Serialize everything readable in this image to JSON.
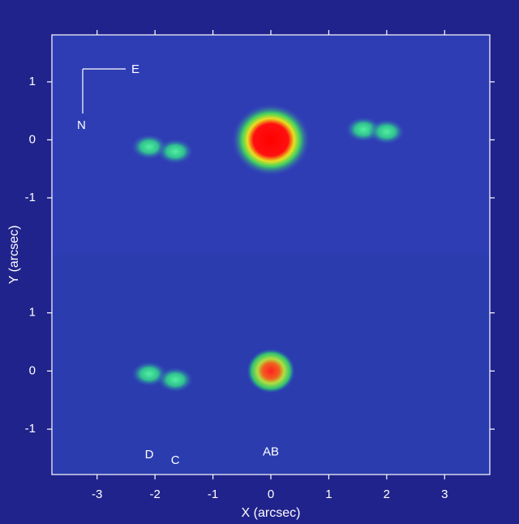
{
  "figure": {
    "x_label": "X (arcsec)",
    "y_label": "Y (arcsec)",
    "compass": {
      "east": "E",
      "north": "N"
    }
  },
  "chart_data": [
    {
      "type": "scatter",
      "xlim": [
        -3.78,
        3.78
      ],
      "ylim": [
        -1.98,
        1.81
      ],
      "xticks": [
        -3,
        -2,
        -1,
        0,
        1,
        2,
        3
      ],
      "yticks": [
        1,
        0,
        -1
      ],
      "x": [
        -2.1,
        -1.65,
        0,
        1.6,
        2.0
      ],
      "y": [
        -0.12,
        -0.2,
        0,
        0.18,
        0.14
      ]
    },
    {
      "type": "scatter",
      "xlim": [
        -3.78,
        3.78
      ],
      "ylim": [
        -1.78,
        2.0
      ],
      "xticks": [
        -3,
        -2,
        -1,
        0,
        1,
        2,
        3
      ],
      "yticks": [
        1,
        0,
        -1
      ],
      "labels": [
        "D",
        "C",
        "AB"
      ],
      "x": [
        -2.1,
        -1.65,
        0
      ],
      "y": [
        -0.05,
        -0.15,
        0
      ]
    }
  ]
}
